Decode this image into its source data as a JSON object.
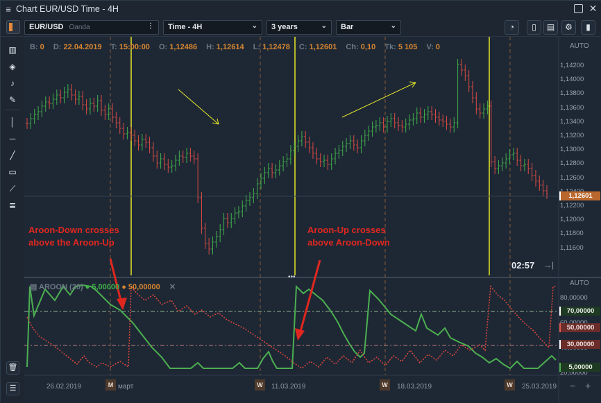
{
  "window": {
    "menu_icon": "≡",
    "title": "Chart EUR/USD Time - 4H",
    "restore_icon": "□",
    "close_icon": "✕"
  },
  "toolbar": {
    "symbol": "EUR/USD",
    "source": "Oanda",
    "symbol_menu": "⋮",
    "timeframe": "Time - 4H",
    "period": "3 years",
    "chart_type": "Bar"
  },
  "ohlc": {
    "b_label": "B:",
    "b": "0",
    "d_label": "D:",
    "d": "22.04.2019",
    "t_label": "T:",
    "t": "15:00:00",
    "o_label": "O:",
    "o": "1,12486",
    "h_label": "H:",
    "h": "1,12614",
    "l_label": "L:",
    "l": "1,12478",
    "c_label": "C:",
    "c": "1,12601",
    "ch_label": "Ch:",
    "ch": "0,10",
    "tk_label": "Tk:",
    "tk": "5 105",
    "v_label": "V:",
    "v": "0"
  },
  "price_axis": {
    "auto": "AUTO",
    "labels": [
      "1,14200",
      "1,14000",
      "1,13800",
      "1,13600",
      "1,13400",
      "1,13200",
      "1,13000",
      "1,12800",
      "1,12600",
      "1,12400",
      "1,12200",
      "1,12000",
      "1,11800",
      "1,11600"
    ],
    "current": "1,12601",
    "current_color": "#e28a3e"
  },
  "annotations": {
    "down_line1": "Aroon-Down crosses",
    "down_line2": "above the Aroon-Up",
    "up_line1": "Aroon-Up crosses",
    "up_line2": "above Aroon-Down"
  },
  "clock": "02:57",
  "aroon": {
    "title": "AROON (20)",
    "up_value": "5,00000",
    "down_value": "50,00000",
    "auto": "AUTO",
    "axis": [
      "80,00000",
      "60,00000",
      "40,00000",
      "20,00000"
    ],
    "level70": "70,00000",
    "level50": "50,00000",
    "level30": "30,00000",
    "level5": "5,00000",
    "up_color": "#4caf50",
    "down_color": "#e0463a"
  },
  "time_axis": {
    "labels": [
      "26.02.2019",
      "март",
      "11.03.2019",
      "18.03.2019",
      "25.03.2019"
    ],
    "badges": [
      "M",
      "W",
      "W",
      "W"
    ]
  },
  "zoom": {
    "minus": "−",
    "plus": "+"
  }
}
